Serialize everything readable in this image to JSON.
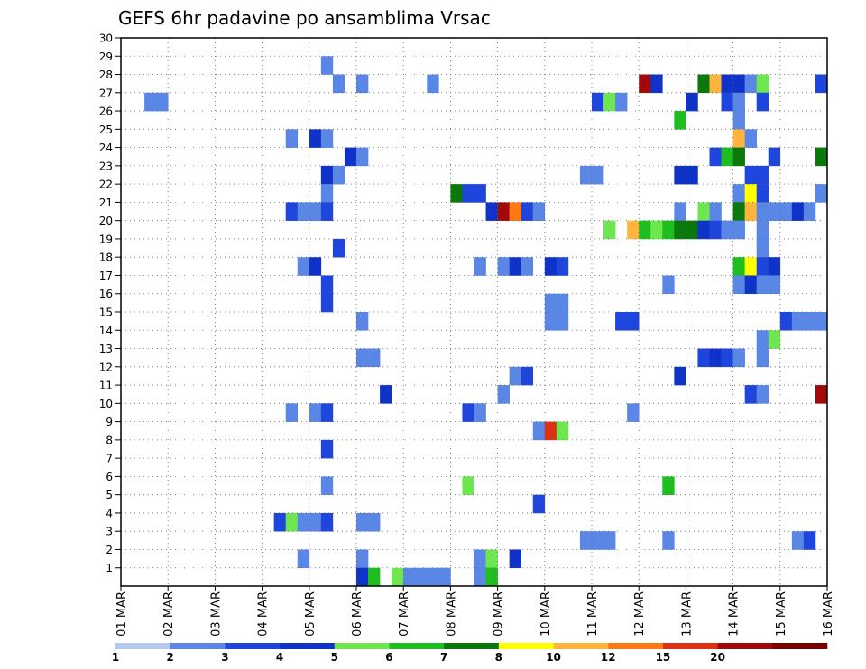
{
  "chart_data": {
    "type": "heatmap",
    "title": "GEFS 6hr padavine po ansamblima Vrsac",
    "xlabel": "",
    "ylabel": "",
    "x_tick_labels": [
      "01 MAR",
      "02 MAR",
      "03 MAR",
      "04 MAR",
      "05 MAR",
      "06 MAR",
      "07 MAR",
      "08 MAR",
      "09 MAR",
      "10 MAR",
      "11 MAR",
      "12 MAR",
      "13 MAR",
      "14 MAR",
      "15 MAR",
      "16 MAR"
    ],
    "y_tick_labels": [
      "1",
      "2",
      "3",
      "4",
      "5",
      "6",
      "7",
      "8",
      "9",
      "10",
      "11",
      "12",
      "13",
      "14",
      "15",
      "16",
      "17",
      "18",
      "19",
      "20",
      "21",
      "22",
      "23",
      "24",
      "25",
      "26",
      "27",
      "28",
      "29",
      "30"
    ],
    "xlim": [
      0,
      60
    ],
    "ylim": [
      0,
      30
    ],
    "grid": true,
    "legend": "bottom",
    "colorbar": {
      "labels": [
        "1",
        "2",
        "3",
        "4",
        "5",
        "6",
        "7",
        "8",
        "10",
        "12",
        "15",
        "20"
      ],
      "colors": [
        "#b4c8f0",
        "#5a87e6",
        "#1e46dc",
        "#0f32c8",
        "#6ee650",
        "#1ebe1e",
        "#0a780a",
        "#ffff00",
        "#ffb43c",
        "#ff7814",
        "#dc3214",
        "#a00a0a",
        "#780000"
      ]
    },
    "cells": [
      {
        "t": 2,
        "m": 27,
        "c": 1
      },
      {
        "t": 3,
        "m": 27,
        "c": 1
      },
      {
        "t": 17,
        "m": 29,
        "c": 1
      },
      {
        "t": 18,
        "m": 28,
        "c": 1
      },
      {
        "t": 20,
        "m": 28,
        "c": 1
      },
      {
        "t": 26,
        "m": 28,
        "c": 1
      },
      {
        "t": 44,
        "m": 28,
        "c": 11
      },
      {
        "t": 45,
        "m": 28,
        "c": 3
      },
      {
        "t": 49,
        "m": 28,
        "c": 6
      },
      {
        "t": 50,
        "m": 28,
        "c": 8
      },
      {
        "t": 51,
        "m": 28,
        "c": 3
      },
      {
        "t": 52,
        "m": 28,
        "c": 3
      },
      {
        "t": 53,
        "m": 28,
        "c": 1
      },
      {
        "t": 54,
        "m": 28,
        "c": 4
      },
      {
        "t": 59,
        "m": 28,
        "c": 2
      },
      {
        "t": 40,
        "m": 27,
        "c": 2
      },
      {
        "t": 41,
        "m": 27,
        "c": 4
      },
      {
        "t": 42,
        "m": 27,
        "c": 1
      },
      {
        "t": 48,
        "m": 27,
        "c": 3
      },
      {
        "t": 51,
        "m": 27,
        "c": 2
      },
      {
        "t": 52,
        "m": 27,
        "c": 1
      },
      {
        "t": 54,
        "m": 27,
        "c": 2
      },
      {
        "t": 47,
        "m": 26,
        "c": 5
      },
      {
        "t": 52,
        "m": 26,
        "c": 1
      },
      {
        "t": 14,
        "m": 25,
        "c": 1
      },
      {
        "t": 16,
        "m": 25,
        "c": 3
      },
      {
        "t": 17,
        "m": 25,
        "c": 1
      },
      {
        "t": 52,
        "m": 25,
        "c": 8
      },
      {
        "t": 53,
        "m": 25,
        "c": 1
      },
      {
        "t": 19,
        "m": 24,
        "c": 3
      },
      {
        "t": 20,
        "m": 24,
        "c": 1
      },
      {
        "t": 50,
        "m": 24,
        "c": 2
      },
      {
        "t": 51,
        "m": 24,
        "c": 5
      },
      {
        "t": 52,
        "m": 24,
        "c": 6
      },
      {
        "t": 55,
        "m": 24,
        "c": 2
      },
      {
        "t": 59,
        "m": 24,
        "c": 6
      },
      {
        "t": 17,
        "m": 23,
        "c": 3
      },
      {
        "t": 18,
        "m": 23,
        "c": 1
      },
      {
        "t": 39,
        "m": 23,
        "c": 1
      },
      {
        "t": 40,
        "m": 23,
        "c": 1
      },
      {
        "t": 47,
        "m": 23,
        "c": 3
      },
      {
        "t": 48,
        "m": 23,
        "c": 3
      },
      {
        "t": 53,
        "m": 23,
        "c": 2
      },
      {
        "t": 54,
        "m": 23,
        "c": 2
      },
      {
        "t": 17,
        "m": 22,
        "c": 1
      },
      {
        "t": 28,
        "m": 22,
        "c": 6
      },
      {
        "t": 29,
        "m": 22,
        "c": 2
      },
      {
        "t": 30,
        "m": 22,
        "c": 2
      },
      {
        "t": 52,
        "m": 22,
        "c": 1
      },
      {
        "t": 53,
        "m": 22,
        "c": 7
      },
      {
        "t": 54,
        "m": 22,
        "c": 2
      },
      {
        "t": 59,
        "m": 22,
        "c": 1
      },
      {
        "t": 14,
        "m": 21,
        "c": 2
      },
      {
        "t": 15,
        "m": 21,
        "c": 1
      },
      {
        "t": 16,
        "m": 21,
        "c": 1
      },
      {
        "t": 17,
        "m": 21,
        "c": 2
      },
      {
        "t": 31,
        "m": 21,
        "c": 3
      },
      {
        "t": 32,
        "m": 21,
        "c": 11
      },
      {
        "t": 33,
        "m": 21,
        "c": 9
      },
      {
        "t": 34,
        "m": 21,
        "c": 2
      },
      {
        "t": 35,
        "m": 21,
        "c": 1
      },
      {
        "t": 47,
        "m": 21,
        "c": 1
      },
      {
        "t": 49,
        "m": 21,
        "c": 4
      },
      {
        "t": 50,
        "m": 21,
        "c": 1
      },
      {
        "t": 52,
        "m": 21,
        "c": 6
      },
      {
        "t": 53,
        "m": 21,
        "c": 8
      },
      {
        "t": 54,
        "m": 21,
        "c": 1
      },
      {
        "t": 55,
        "m": 21,
        "c": 1
      },
      {
        "t": 56,
        "m": 21,
        "c": 1
      },
      {
        "t": 57,
        "m": 21,
        "c": 3
      },
      {
        "t": 58,
        "m": 21,
        "c": 1
      },
      {
        "t": 41,
        "m": 20,
        "c": 4
      },
      {
        "t": 43,
        "m": 20,
        "c": 8
      },
      {
        "t": 44,
        "m": 20,
        "c": 5
      },
      {
        "t": 45,
        "m": 20,
        "c": 4
      },
      {
        "t": 46,
        "m": 20,
        "c": 5
      },
      {
        "t": 47,
        "m": 20,
        "c": 6
      },
      {
        "t": 48,
        "m": 20,
        "c": 6
      },
      {
        "t": 49,
        "m": 20,
        "c": 3
      },
      {
        "t": 50,
        "m": 20,
        "c": 2
      },
      {
        "t": 51,
        "m": 20,
        "c": 1
      },
      {
        "t": 52,
        "m": 20,
        "c": 1
      },
      {
        "t": 54,
        "m": 20,
        "c": 1
      },
      {
        "t": 18,
        "m": 19,
        "c": 2
      },
      {
        "t": 54,
        "m": 19,
        "c": 1
      },
      {
        "t": 15,
        "m": 18,
        "c": 1
      },
      {
        "t": 16,
        "m": 18,
        "c": 3
      },
      {
        "t": 30,
        "m": 18,
        "c": 1
      },
      {
        "t": 32,
        "m": 18,
        "c": 1
      },
      {
        "t": 33,
        "m": 18,
        "c": 3
      },
      {
        "t": 34,
        "m": 18,
        "c": 1
      },
      {
        "t": 36,
        "m": 18,
        "c": 3
      },
      {
        "t": 37,
        "m": 18,
        "c": 2
      },
      {
        "t": 52,
        "m": 18,
        "c": 5
      },
      {
        "t": 53,
        "m": 18,
        "c": 7
      },
      {
        "t": 54,
        "m": 18,
        "c": 2
      },
      {
        "t": 55,
        "m": 18,
        "c": 3
      },
      {
        "t": 17,
        "m": 17,
        "c": 2
      },
      {
        "t": 46,
        "m": 17,
        "c": 1
      },
      {
        "t": 52,
        "m": 17,
        "c": 1
      },
      {
        "t": 53,
        "m": 17,
        "c": 3
      },
      {
        "t": 54,
        "m": 17,
        "c": 1
      },
      {
        "t": 55,
        "m": 17,
        "c": 1
      },
      {
        "t": 17,
        "m": 16,
        "c": 2
      },
      {
        "t": 36,
        "m": 16,
        "c": 1
      },
      {
        "t": 37,
        "m": 16,
        "c": 1
      },
      {
        "t": 20,
        "m": 15,
        "c": 1
      },
      {
        "t": 36,
        "m": 15,
        "c": 1
      },
      {
        "t": 37,
        "m": 15,
        "c": 1
      },
      {
        "t": 42,
        "m": 15,
        "c": 2
      },
      {
        "t": 43,
        "m": 15,
        "c": 2
      },
      {
        "t": 56,
        "m": 15,
        "c": 2
      },
      {
        "t": 57,
        "m": 15,
        "c": 1
      },
      {
        "t": 58,
        "m": 15,
        "c": 1
      },
      {
        "t": 59,
        "m": 15,
        "c": 1
      },
      {
        "t": 54,
        "m": 14,
        "c": 1
      },
      {
        "t": 55,
        "m": 14,
        "c": 4
      },
      {
        "t": 20,
        "m": 13,
        "c": 1
      },
      {
        "t": 21,
        "m": 13,
        "c": 1
      },
      {
        "t": 49,
        "m": 13,
        "c": 2
      },
      {
        "t": 50,
        "m": 13,
        "c": 3
      },
      {
        "t": 51,
        "m": 13,
        "c": 2
      },
      {
        "t": 52,
        "m": 13,
        "c": 1
      },
      {
        "t": 54,
        "m": 13,
        "c": 1
      },
      {
        "t": 33,
        "m": 12,
        "c": 1
      },
      {
        "t": 34,
        "m": 12,
        "c": 2
      },
      {
        "t": 47,
        "m": 12,
        "c": 3
      },
      {
        "t": 22,
        "m": 11,
        "c": 3
      },
      {
        "t": 32,
        "m": 11,
        "c": 1
      },
      {
        "t": 53,
        "m": 11,
        "c": 2
      },
      {
        "t": 54,
        "m": 11,
        "c": 1
      },
      {
        "t": 59,
        "m": 11,
        "c": 11
      },
      {
        "t": 14,
        "m": 10,
        "c": 1
      },
      {
        "t": 16,
        "m": 10,
        "c": 1
      },
      {
        "t": 17,
        "m": 10,
        "c": 2
      },
      {
        "t": 29,
        "m": 10,
        "c": 2
      },
      {
        "t": 30,
        "m": 10,
        "c": 1
      },
      {
        "t": 43,
        "m": 10,
        "c": 1
      },
      {
        "t": 35,
        "m": 9,
        "c": 1
      },
      {
        "t": 36,
        "m": 9,
        "c": 10
      },
      {
        "t": 37,
        "m": 9,
        "c": 4
      },
      {
        "t": 17,
        "m": 8,
        "c": 2
      },
      {
        "t": 17,
        "m": 6,
        "c": 1
      },
      {
        "t": 29,
        "m": 6,
        "c": 4
      },
      {
        "t": 46,
        "m": 6,
        "c": 5
      },
      {
        "t": 35,
        "m": 5,
        "c": 2
      },
      {
        "t": 13,
        "m": 4,
        "c": 2
      },
      {
        "t": 14,
        "m": 4,
        "c": 4
      },
      {
        "t": 15,
        "m": 4,
        "c": 1
      },
      {
        "t": 16,
        "m": 4,
        "c": 1
      },
      {
        "t": 17,
        "m": 4,
        "c": 2
      },
      {
        "t": 20,
        "m": 4,
        "c": 1
      },
      {
        "t": 21,
        "m": 4,
        "c": 1
      },
      {
        "t": 39,
        "m": 3,
        "c": 1
      },
      {
        "t": 40,
        "m": 3,
        "c": 1
      },
      {
        "t": 41,
        "m": 3,
        "c": 1
      },
      {
        "t": 46,
        "m": 3,
        "c": 1
      },
      {
        "t": 57,
        "m": 3,
        "c": 1
      },
      {
        "t": 58,
        "m": 3,
        "c": 2
      },
      {
        "t": 15,
        "m": 2,
        "c": 1
      },
      {
        "t": 20,
        "m": 2,
        "c": 1
      },
      {
        "t": 30,
        "m": 2,
        "c": 1
      },
      {
        "t": 31,
        "m": 2,
        "c": 4
      },
      {
        "t": 33,
        "m": 2,
        "c": 3
      },
      {
        "t": 20,
        "m": 1,
        "c": 3
      },
      {
        "t": 21,
        "m": 1,
        "c": 5
      },
      {
        "t": 23,
        "m": 1,
        "c": 4
      },
      {
        "t": 24,
        "m": 1,
        "c": 1
      },
      {
        "t": 25,
        "m": 1,
        "c": 1
      },
      {
        "t": 26,
        "m": 1,
        "c": 1
      },
      {
        "t": 27,
        "m": 1,
        "c": 1
      },
      {
        "t": 30,
        "m": 1,
        "c": 1
      },
      {
        "t": 31,
        "m": 1,
        "c": 5
      }
    ]
  }
}
